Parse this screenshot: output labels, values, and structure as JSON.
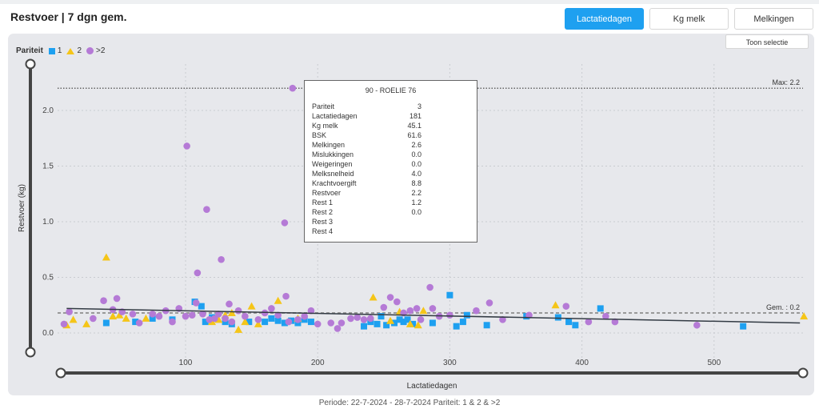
{
  "header": {
    "title": "Restvoer | 7 dgn gem."
  },
  "tabs": [
    {
      "label": "Lactatiedagen",
      "active": true
    },
    {
      "label": "Kg melk",
      "active": false
    },
    {
      "label": "Melkingen",
      "active": false
    }
  ],
  "toolbar": {
    "selection_label": "Toon selectie"
  },
  "legend": {
    "label": "Pariteit",
    "items": [
      "1",
      "2",
      ">2"
    ]
  },
  "colors": {
    "parity1": "#1ea0f0",
    "parity2": "#f5c518",
    "parity3": "#b57ad6",
    "accent": "#1ea0f0"
  },
  "footer": {
    "periode": "Periode: 22-7-2024  -  28-7-2024   Pariteit: 1 & 2 & >2"
  },
  "tooltip": {
    "title": "90 - ROELIE 76",
    "rows": [
      {
        "key": "Pariteit",
        "value": "3"
      },
      {
        "key": "Lactatiedagen",
        "value": "181"
      },
      {
        "key": "Kg melk",
        "value": "45.1"
      },
      {
        "key": "BSK",
        "value": "61.6"
      },
      {
        "key": "Melkingen",
        "value": "2.6"
      },
      {
        "key": "Mislukkingen",
        "value": "0.0"
      },
      {
        "key": "Weigeringen",
        "value": "0.0"
      },
      {
        "key": "Melksnelheid",
        "value": "4.0"
      },
      {
        "key": "Krachtvoergift",
        "value": "8.8"
      },
      {
        "key": "Restvoer",
        "value": "2.2"
      },
      {
        "key": "Rest 1",
        "value": "1.2"
      },
      {
        "key": "Rest 2",
        "value": "0.0"
      },
      {
        "key": "Rest 3",
        "value": ""
      },
      {
        "key": "Rest 4",
        "value": ""
      }
    ]
  },
  "chart_data": {
    "type": "scatter",
    "xlabel": "Lactatiedagen",
    "ylabel": "Restvoer (kg)",
    "xlim": [
      0,
      570
    ],
    "ylim": [
      -0.1,
      2.45
    ],
    "xticks": [
      100,
      200,
      300,
      400,
      500
    ],
    "yticks": [
      0.0,
      0.5,
      1.0,
      1.5,
      2.0
    ],
    "grid": true,
    "legend_position": "top-left",
    "reference_lines": [
      {
        "label": "Max: 2.2",
        "value": 2.2
      },
      {
        "label": "Gem. : 0.2",
        "value": 0.18
      }
    ],
    "trend_line": {
      "x": [
        10,
        565
      ],
      "y": [
        0.22,
        0.09
      ]
    },
    "series": [
      {
        "name": "1",
        "marker": "square",
        "points": [
          [
            40,
            0.09
          ],
          [
            62,
            0.1
          ],
          [
            75,
            0.13
          ],
          [
            90,
            0.12
          ],
          [
            107,
            0.28
          ],
          [
            112,
            0.24
          ],
          [
            115,
            0.1
          ],
          [
            120,
            0.14
          ],
          [
            130,
            0.1
          ],
          [
            135,
            0.08
          ],
          [
            148,
            0.1
          ],
          [
            160,
            0.1
          ],
          [
            165,
            0.13
          ],
          [
            170,
            0.11
          ],
          [
            175,
            0.09
          ],
          [
            180,
            0.11
          ],
          [
            185,
            0.09
          ],
          [
            190,
            0.12
          ],
          [
            195,
            0.1
          ],
          [
            235,
            0.06
          ],
          [
            240,
            0.1
          ],
          [
            245,
            0.08
          ],
          [
            248,
            0.15
          ],
          [
            252,
            0.07
          ],
          [
            258,
            0.09
          ],
          [
            262,
            0.12
          ],
          [
            265,
            0.1
          ],
          [
            268,
            0.12
          ],
          [
            272,
            0.08
          ],
          [
            287,
            0.09
          ],
          [
            300,
            0.34
          ],
          [
            305,
            0.06
          ],
          [
            310,
            0.1
          ],
          [
            313,
            0.16
          ],
          [
            328,
            0.07
          ],
          [
            358,
            0.15
          ],
          [
            382,
            0.14
          ],
          [
            390,
            0.1
          ],
          [
            395,
            0.07
          ],
          [
            414,
            0.22
          ],
          [
            522,
            0.06
          ]
        ]
      },
      {
        "name": "2",
        "marker": "triangle",
        "points": [
          [
            10,
            0.07
          ],
          [
            15,
            0.12
          ],
          [
            25,
            0.08
          ],
          [
            40,
            0.68
          ],
          [
            45,
            0.15
          ],
          [
            50,
            0.16
          ],
          [
            55,
            0.13
          ],
          [
            70,
            0.13
          ],
          [
            120,
            0.1
          ],
          [
            125,
            0.12
          ],
          [
            130,
            0.16
          ],
          [
            135,
            0.18
          ],
          [
            140,
            0.03
          ],
          [
            145,
            0.1
          ],
          [
            150,
            0.24
          ],
          [
            155,
            0.08
          ],
          [
            170,
            0.29
          ],
          [
            185,
            0.13
          ],
          [
            242,
            0.32
          ],
          [
            255,
            0.11
          ],
          [
            262,
            0.19
          ],
          [
            270,
            0.08
          ],
          [
            276,
            0.07
          ],
          [
            280,
            0.2
          ],
          [
            380,
            0.25
          ],
          [
            568,
            0.15
          ]
        ]
      },
      {
        "name": ">2",
        "marker": "circle",
        "points": [
          [
            8,
            0.08
          ],
          [
            12,
            0.19
          ],
          [
            30,
            0.13
          ],
          [
            38,
            0.29
          ],
          [
            45,
            0.21
          ],
          [
            48,
            0.31
          ],
          [
            52,
            0.19
          ],
          [
            60,
            0.17
          ],
          [
            65,
            0.09
          ],
          [
            75,
            0.17
          ],
          [
            80,
            0.15
          ],
          [
            85,
            0.2
          ],
          [
            90,
            0.1
          ],
          [
            95,
            0.22
          ],
          [
            100,
            0.15
          ],
          [
            101,
            1.68
          ],
          [
            105,
            0.16
          ],
          [
            108,
            0.27
          ],
          [
            109,
            0.54
          ],
          [
            113,
            0.17
          ],
          [
            116,
            1.11
          ],
          [
            118,
            0.12
          ],
          [
            122,
            0.13
          ],
          [
            125,
            0.17
          ],
          [
            127,
            0.66
          ],
          [
            130,
            0.13
          ],
          [
            133,
            0.26
          ],
          [
            135,
            0.1
          ],
          [
            140,
            0.2
          ],
          [
            145,
            0.15
          ],
          [
            155,
            0.12
          ],
          [
            160,
            0.18
          ],
          [
            165,
            0.22
          ],
          [
            170,
            0.16
          ],
          [
            175,
            0.99
          ],
          [
            176,
            0.33
          ],
          [
            178,
            0.1
          ],
          [
            181,
            2.2
          ],
          [
            185,
            0.12
          ],
          [
            190,
            0.15
          ],
          [
            195,
            0.2
          ],
          [
            200,
            0.08
          ],
          [
            210,
            0.09
          ],
          [
            215,
            0.04
          ],
          [
            218,
            0.09
          ],
          [
            225,
            0.13
          ],
          [
            230,
            0.14
          ],
          [
            235,
            0.12
          ],
          [
            240,
            0.13
          ],
          [
            250,
            0.23
          ],
          [
            255,
            0.32
          ],
          [
            260,
            0.28
          ],
          [
            265,
            0.18
          ],
          [
            270,
            0.2
          ],
          [
            275,
            0.22
          ],
          [
            278,
            0.12
          ],
          [
            285,
            0.41
          ],
          [
            287,
            0.22
          ],
          [
            292,
            0.15
          ],
          [
            300,
            0.16
          ],
          [
            320,
            0.2
          ],
          [
            330,
            0.27
          ],
          [
            340,
            0.12
          ],
          [
            360,
            0.16
          ],
          [
            388,
            0.24
          ],
          [
            405,
            0.1
          ],
          [
            418,
            0.15
          ],
          [
            425,
            0.1
          ],
          [
            487,
            0.07
          ]
        ]
      }
    ]
  }
}
